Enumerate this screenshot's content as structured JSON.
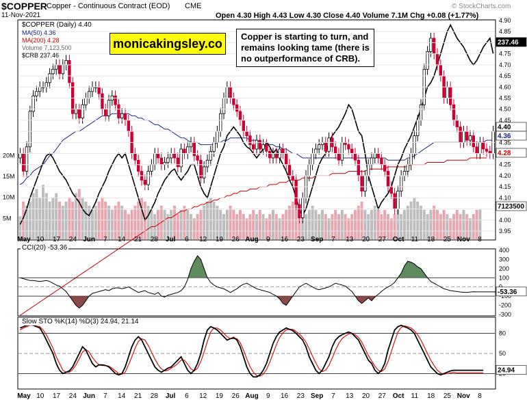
{
  "header": {
    "ticker": "$COPPER",
    "name": "Copper - Continuous Contract (EOD)",
    "exchange": "CME",
    "date": "11-Nov-2021",
    "watermark": "© StockCharts.com",
    "ohlc_text": "Open 4.30  High 4.43  Low 4.30  Close 4.40  Volume 7.1M  Chg +0.08 (+1.77%)"
  },
  "legend": {
    "main": "$COPPER (Daily) 4.40",
    "ma50": "MA(50) 4.36",
    "ma200": "MA(200) 4.28",
    "volume": "Volume 7,123,500",
    "crb": "$CRB 237.46"
  },
  "promo_text": "monicakingsley.co",
  "annotation": "Copper is starting to turn, and remains looking tame (there is no outperformance of CRB).",
  "colors": {
    "up": "#000000",
    "down": "#cc0033",
    "ma50": "#1a237e",
    "ma200": "#cc0000",
    "vol_up": "#bdbdbd",
    "vol_down": "#e8a7b0",
    "crb": "#000000",
    "stoch_d": "#dd1111",
    "cci_pos": "#5e8a5e",
    "cci_neg": "#8b4a4a"
  },
  "chart_data": [
    {
      "type": "candlestick",
      "title": "$COPPER (Daily) 4.40",
      "ylim": [
        3.95,
        4.9
      ],
      "yticks": [
        "4.90",
        "4.85",
        "4.80",
        "4.75",
        "4.70",
        "4.65",
        "4.60",
        "4.55",
        "4.50",
        "4.45",
        "4.40",
        "4.35",
        "4.30",
        "4.25",
        "4.20",
        "4.15",
        "4.10",
        "4.05",
        "4.00",
        "3.95"
      ],
      "x_labels": [
        "May",
        "10",
        "17",
        "24",
        "Jun",
        "7",
        "14",
        "21",
        "28",
        "Jul",
        "6",
        "12",
        "19",
        "26",
        "Aug",
        "9",
        "16",
        "23",
        "Sep",
        "7",
        "13",
        "20",
        "27",
        "Oct",
        "11",
        "18",
        "25",
        "Nov",
        "8"
      ],
      "price_tags": {
        "last": "4.40",
        "ma50": "4.36",
        "ma200": "4.28",
        "crb": "237.46",
        "volume": "7123500"
      },
      "close": [
        4.3,
        4.22,
        4.33,
        4.49,
        4.56,
        4.58,
        4.6,
        4.6,
        4.62,
        4.66,
        4.68,
        4.7,
        4.66,
        4.7,
        4.72,
        4.62,
        4.48,
        4.5,
        4.46,
        4.52,
        4.55,
        4.58,
        4.6,
        4.6,
        4.57,
        4.5,
        4.47,
        4.54,
        4.56,
        4.52,
        4.46,
        4.48,
        4.45,
        4.4,
        4.3,
        4.27,
        4.22,
        4.18,
        4.16,
        4.22,
        4.25,
        4.3,
        4.28,
        4.25,
        4.26,
        4.28,
        4.3,
        4.28,
        4.24,
        4.32,
        4.3,
        4.33,
        4.35,
        4.29,
        4.27,
        4.19,
        4.24,
        4.27,
        4.31,
        4.35,
        4.4,
        4.48,
        4.55,
        4.6,
        4.55,
        4.52,
        4.49,
        4.45,
        4.4,
        4.38,
        4.34,
        4.32,
        4.36,
        4.32,
        4.34,
        4.31,
        4.28,
        4.3,
        4.28,
        4.32,
        4.3,
        4.25,
        4.2,
        4.18,
        4.07,
        4.01,
        4.1,
        4.2,
        4.25,
        4.3,
        4.32,
        4.34,
        4.35,
        4.31,
        4.37,
        4.33,
        4.3,
        4.27,
        4.35,
        4.34,
        4.32,
        4.3,
        4.27,
        4.2,
        4.13,
        4.2,
        4.25,
        4.28,
        4.3,
        4.28,
        4.25,
        4.22,
        4.15,
        4.12,
        4.05,
        4.13,
        4.2,
        4.22,
        4.25,
        4.3,
        4.38,
        4.45,
        4.52,
        4.68,
        4.76,
        4.82,
        4.75,
        4.7,
        4.65,
        4.55,
        4.6,
        4.52,
        4.45,
        4.42,
        4.35,
        4.4,
        4.36,
        4.38,
        4.33,
        4.3,
        4.35,
        4.32,
        4.31,
        4.3,
        4.4
      ],
      "ma50": [
        4.16,
        4.17,
        4.19,
        4.2,
        4.22,
        4.23,
        4.24,
        4.25,
        4.27,
        4.29,
        4.3,
        4.32,
        4.34,
        4.36,
        4.37,
        4.38,
        4.39,
        4.4,
        4.4,
        4.41,
        4.42,
        4.43,
        4.44,
        4.45,
        4.46,
        4.47,
        4.47,
        4.47,
        4.48,
        4.48,
        4.48,
        4.48,
        4.48,
        4.48,
        4.47,
        4.47,
        4.46,
        4.46,
        4.45,
        4.45,
        4.44,
        4.43,
        4.43,
        4.42,
        4.41,
        4.41,
        4.4,
        4.39,
        4.38,
        4.37,
        4.37,
        4.36,
        4.35,
        4.35,
        4.35,
        4.34,
        4.34,
        4.34,
        4.34,
        4.34,
        4.35,
        4.35,
        4.36,
        4.36,
        4.37,
        4.37,
        4.37,
        4.37,
        4.37,
        4.37,
        4.36,
        4.36,
        4.36,
        4.35,
        4.35,
        4.35,
        4.34,
        4.34,
        4.33,
        4.33,
        4.32,
        4.32,
        4.31,
        4.3,
        4.3,
        4.29,
        4.28,
        4.28,
        4.28,
        4.28,
        4.28,
        4.28,
        4.28,
        4.28,
        4.28,
        4.28,
        4.28,
        4.28,
        4.28,
        4.28,
        4.28,
        4.28,
        4.28,
        4.28,
        4.28,
        4.28,
        4.28,
        4.28,
        4.28,
        4.28,
        4.28,
        4.28,
        4.27,
        4.27,
        4.27,
        4.27,
        4.27,
        4.27,
        4.28,
        4.28,
        4.29,
        4.3,
        4.31,
        4.32,
        4.33,
        4.34,
        4.35,
        4.35,
        4.35,
        4.35,
        4.35,
        4.35,
        4.35,
        4.35,
        4.35,
        4.35,
        4.35,
        4.35,
        4.35,
        4.35,
        4.35,
        4.35,
        4.36,
        4.36,
        4.36
      ],
      "ma200": [
        3.57,
        3.58,
        3.59,
        3.6,
        3.61,
        3.62,
        3.63,
        3.64,
        3.65,
        3.66,
        3.67,
        3.68,
        3.69,
        3.7,
        3.71,
        3.72,
        3.73,
        3.74,
        3.75,
        3.76,
        3.77,
        3.78,
        3.79,
        3.8,
        3.81,
        3.82,
        3.83,
        3.84,
        3.85,
        3.86,
        3.87,
        3.88,
        3.89,
        3.9,
        3.91,
        3.92,
        3.93,
        3.94,
        3.95,
        3.96,
        3.97,
        3.97,
        3.98,
        3.99,
        4.0,
        4.01,
        4.01,
        4.02,
        4.03,
        4.04,
        4.04,
        4.05,
        4.05,
        4.06,
        4.06,
        4.07,
        4.07,
        4.08,
        4.08,
        4.09,
        4.09,
        4.1,
        4.1,
        4.11,
        4.11,
        4.12,
        4.12,
        4.13,
        4.13,
        4.13,
        4.14,
        4.14,
        4.14,
        4.15,
        4.15,
        4.15,
        4.16,
        4.16,
        4.16,
        4.17,
        4.17,
        4.17,
        4.18,
        4.18,
        4.18,
        4.18,
        4.19,
        4.19,
        4.19,
        4.19,
        4.2,
        4.2,
        4.2,
        4.2,
        4.2,
        4.21,
        4.21,
        4.21,
        4.21,
        4.21,
        4.22,
        4.22,
        4.22,
        4.22,
        4.22,
        4.22,
        4.23,
        4.23,
        4.23,
        4.23,
        4.23,
        4.23,
        4.24,
        4.24,
        4.24,
        4.24,
        4.24,
        4.24,
        4.24,
        4.25,
        4.25,
        4.25,
        4.25,
        4.25,
        4.26,
        4.26,
        4.26,
        4.26,
        4.26,
        4.26,
        4.27,
        4.27,
        4.27,
        4.27,
        4.27,
        4.27,
        4.27,
        4.28,
        4.28,
        4.28,
        4.28,
        4.28,
        4.28
      ],
      "crb": [
        3.98,
        4.01,
        4.05,
        4.1,
        4.14,
        4.18,
        4.22,
        4.26,
        4.29,
        4.3,
        4.28,
        4.25,
        4.22,
        4.2,
        4.18,
        4.15,
        4.12,
        4.1,
        4.08,
        4.05,
        4.03,
        4.02,
        4.05,
        4.08,
        4.12,
        4.15,
        4.18,
        4.22,
        4.25,
        4.28,
        4.3,
        4.28,
        4.3,
        4.25,
        4.2,
        4.15,
        4.1,
        4.05,
        4.0,
        4.02,
        4.05,
        4.08,
        4.12,
        4.15,
        4.18,
        4.2,
        4.22,
        4.23,
        4.2,
        4.18,
        4.2,
        4.22,
        4.25,
        4.25,
        4.2,
        4.15,
        4.12,
        4.1,
        4.15,
        4.2,
        4.25,
        4.3,
        4.33,
        4.38,
        4.4,
        4.42,
        4.4,
        4.38,
        4.35,
        4.33,
        4.32,
        4.3,
        4.28,
        4.3,
        4.32,
        4.35,
        4.33,
        4.3,
        4.32,
        4.28,
        4.25,
        4.22,
        4.18,
        4.15,
        4.1,
        4.05,
        4.02,
        4.05,
        4.1,
        4.15,
        4.2,
        4.25,
        4.28,
        4.3,
        4.35,
        4.38,
        4.4,
        4.42,
        4.45,
        4.48,
        4.52,
        4.5,
        4.45,
        4.4,
        4.38,
        4.3,
        4.2,
        4.15,
        4.1,
        4.05,
        4.08,
        4.1,
        4.12,
        4.15,
        4.2,
        4.25,
        4.28,
        4.32,
        4.35,
        4.38,
        4.42,
        4.46,
        4.5,
        4.55,
        4.6,
        4.62,
        4.65,
        4.7,
        4.75,
        4.8,
        4.85,
        4.88,
        4.85,
        4.82,
        4.8,
        4.78,
        4.75,
        4.72,
        4.7,
        4.72,
        4.75,
        4.78,
        4.8,
        4.82,
        4.75
      ],
      "volume_m": [
        5.5,
        9.0,
        8.0,
        9.0,
        11.0,
        12.0,
        10.0,
        13.0,
        11.0,
        9.0,
        10.0,
        11.0,
        9.0,
        8.0,
        9.0,
        10.0,
        9.0,
        11.0,
        12.0,
        10.0,
        9.0,
        8.0,
        7.0,
        8.0,
        9.0,
        10.0,
        9.0,
        8.0,
        7.0,
        8.0,
        9.0,
        8.0,
        7.0,
        6.0,
        7.0,
        8.0,
        9.0,
        10.0,
        9.0,
        8.0,
        7.0,
        6.0,
        7.0,
        8.0,
        7.0,
        6.0,
        7.0,
        8.0,
        6.0,
        7.0,
        8.0,
        7.0,
        6.0,
        5.0,
        6.0,
        7.0,
        8.0,
        9.0,
        10.0,
        9.0,
        8.0,
        7.0,
        6.0,
        7.0,
        8.0,
        7.0,
        6.0,
        7.0,
        6.0,
        5.0,
        6.0,
        7.0,
        6.0,
        7.0,
        6.0,
        5.0,
        6.0,
        7.0,
        6.0,
        5.0,
        6.0,
        7.0,
        8.0,
        9.0,
        10.0,
        8.0,
        7.0,
        6.0,
        7.0,
        8.0,
        7.0,
        6.0,
        7.0,
        6.0,
        5.0,
        6.0,
        7.0,
        6.0,
        7.0,
        6.0,
        5.0,
        6.0,
        7.0,
        8.0,
        9.0,
        7.0,
        6.0,
        7.0,
        8.0,
        7.0,
        6.0,
        7.0,
        6.0,
        5.0,
        6.0,
        7.0,
        6.0,
        7.0,
        8.0,
        9.0,
        10.0,
        9.0,
        8.0,
        7.0,
        6.0,
        7.0,
        8.0,
        7.0,
        6.0,
        7.0,
        6.0,
        5.0,
        6.0,
        7.0,
        6.0,
        7.0,
        6.0,
        5.0,
        6.0,
        7.0,
        7.1
      ],
      "volume_ticks": [
        "20M",
        "15M",
        "10M",
        "5M"
      ]
    },
    {
      "type": "line",
      "title": "CCI(20) -53.36",
      "ylim": [
        -300,
        400
      ],
      "yticks": [
        "400",
        "300",
        "200",
        "100",
        "0",
        "-100",
        "-200",
        "-300"
      ],
      "last_tag": "-53.36",
      "values": [
        100,
        90,
        80,
        70,
        70,
        65,
        60,
        65,
        70,
        60,
        40,
        20,
        10,
        -20,
        -50,
        -100,
        -150,
        -200,
        -230,
        -200,
        -150,
        -100,
        -70,
        -60,
        -50,
        -40,
        -30,
        -40,
        -20,
        -10,
        -10,
        -20,
        -10,
        0,
        -20,
        -40,
        -60,
        -50,
        -40,
        -60,
        -70,
        -80,
        -60,
        -100,
        -110,
        -90,
        -80,
        -70,
        -60,
        -40,
        0,
        80,
        200,
        280,
        340,
        300,
        200,
        100,
        50,
        20,
        0,
        -10,
        -20,
        -40,
        -60,
        -40,
        -20,
        10,
        30,
        40,
        20,
        0,
        -20,
        -30,
        -40,
        -50,
        -60,
        -80,
        -100,
        -130,
        -180,
        -200,
        -150,
        -100,
        -50,
        0,
        20,
        40,
        20,
        0,
        -20,
        -30,
        -20,
        -10,
        0,
        20,
        40,
        30,
        20,
        10,
        -20,
        -50,
        -100,
        -150,
        -180,
        -150,
        -120,
        -150,
        -110,
        -80,
        -50,
        -20,
        0,
        20,
        50,
        100,
        150,
        230,
        280,
        270,
        250,
        220,
        200,
        150,
        100,
        60,
        40,
        20,
        0,
        -20,
        -30,
        -40,
        -45,
        -50,
        -55,
        -58,
        -60,
        -55,
        -52,
        -53.36,
        -53.36,
        -53.36,
        -53.36,
        -53.36,
        -53.36,
        -53.36
      ]
    },
    {
      "type": "line",
      "title": "Slow STO %K(14) %D(3) 24.94, 21.14",
      "ylim": [
        0,
        100
      ],
      "yticks": [
        "80",
        "50",
        "20"
      ],
      "last_tag": "24.94",
      "k": [
        88,
        90,
        92,
        93,
        92,
        90,
        88,
        80,
        70,
        60,
        50,
        35,
        25,
        20,
        22,
        24,
        30,
        40,
        50,
        60,
        55,
        45,
        35,
        30,
        33,
        33,
        32,
        30,
        25,
        20,
        18,
        20,
        30,
        45,
        60,
        70,
        75,
        70,
        60,
        50,
        40,
        30,
        25,
        22,
        25,
        28,
        30,
        35,
        40,
        45,
        35,
        25,
        20,
        25,
        35,
        50,
        70,
        85,
        90,
        88,
        85,
        80,
        75,
        70,
        72,
        74,
        70,
        60,
        45,
        30,
        20,
        15,
        15,
        18,
        25,
        35,
        50,
        65,
        75,
        82,
        85,
        88,
        86,
        84,
        80,
        75,
        70,
        60,
        45,
        35,
        25,
        20,
        25,
        35,
        45,
        60,
        70,
        75,
        78,
        80,
        82,
        80,
        75,
        70,
        60,
        50,
        40,
        35,
        25,
        20,
        25,
        35,
        55,
        70,
        85,
        90,
        92,
        90,
        88,
        85,
        80,
        70,
        60,
        50,
        40,
        30,
        25,
        20,
        18,
        20,
        22,
        24,
        25,
        24.94,
        24.94,
        24.94,
        24.94,
        24.94,
        24.94,
        24.94,
        24.94,
        24.94
      ],
      "d": [
        85,
        88,
        90,
        92,
        92,
        91,
        90,
        85,
        78,
        68,
        58,
        45,
        35,
        25,
        22,
        22,
        26,
        33,
        42,
        52,
        56,
        52,
        44,
        38,
        33,
        32,
        32,
        31,
        28,
        24,
        20,
        19,
        22,
        33,
        45,
        58,
        68,
        72,
        70,
        62,
        52,
        42,
        33,
        27,
        24,
        25,
        28,
        31,
        35,
        40,
        40,
        34,
        27,
        24,
        28,
        38,
        52,
        68,
        82,
        88,
        88,
        85,
        80,
        75,
        72,
        72,
        72,
        66,
        55,
        42,
        30,
        22,
        17,
        16,
        19,
        26,
        37,
        50,
        63,
        74,
        81,
        85,
        86,
        86,
        83,
        79,
        74,
        67,
        57,
        46,
        36,
        27,
        23,
        25,
        32,
        43,
        55,
        65,
        72,
        76,
        79,
        80,
        78,
        74,
        67,
        57,
        47,
        39,
        31,
        25,
        23,
        27,
        38,
        53,
        68,
        82,
        89,
        91,
        90,
        88,
        84,
        78,
        70,
        60,
        50,
        40,
        32,
        25,
        21,
        19,
        20,
        21,
        22,
        21.14,
        21.14,
        21.14,
        21.14,
        21.14,
        21.14,
        21.14,
        21.14,
        21.14
      ]
    }
  ]
}
